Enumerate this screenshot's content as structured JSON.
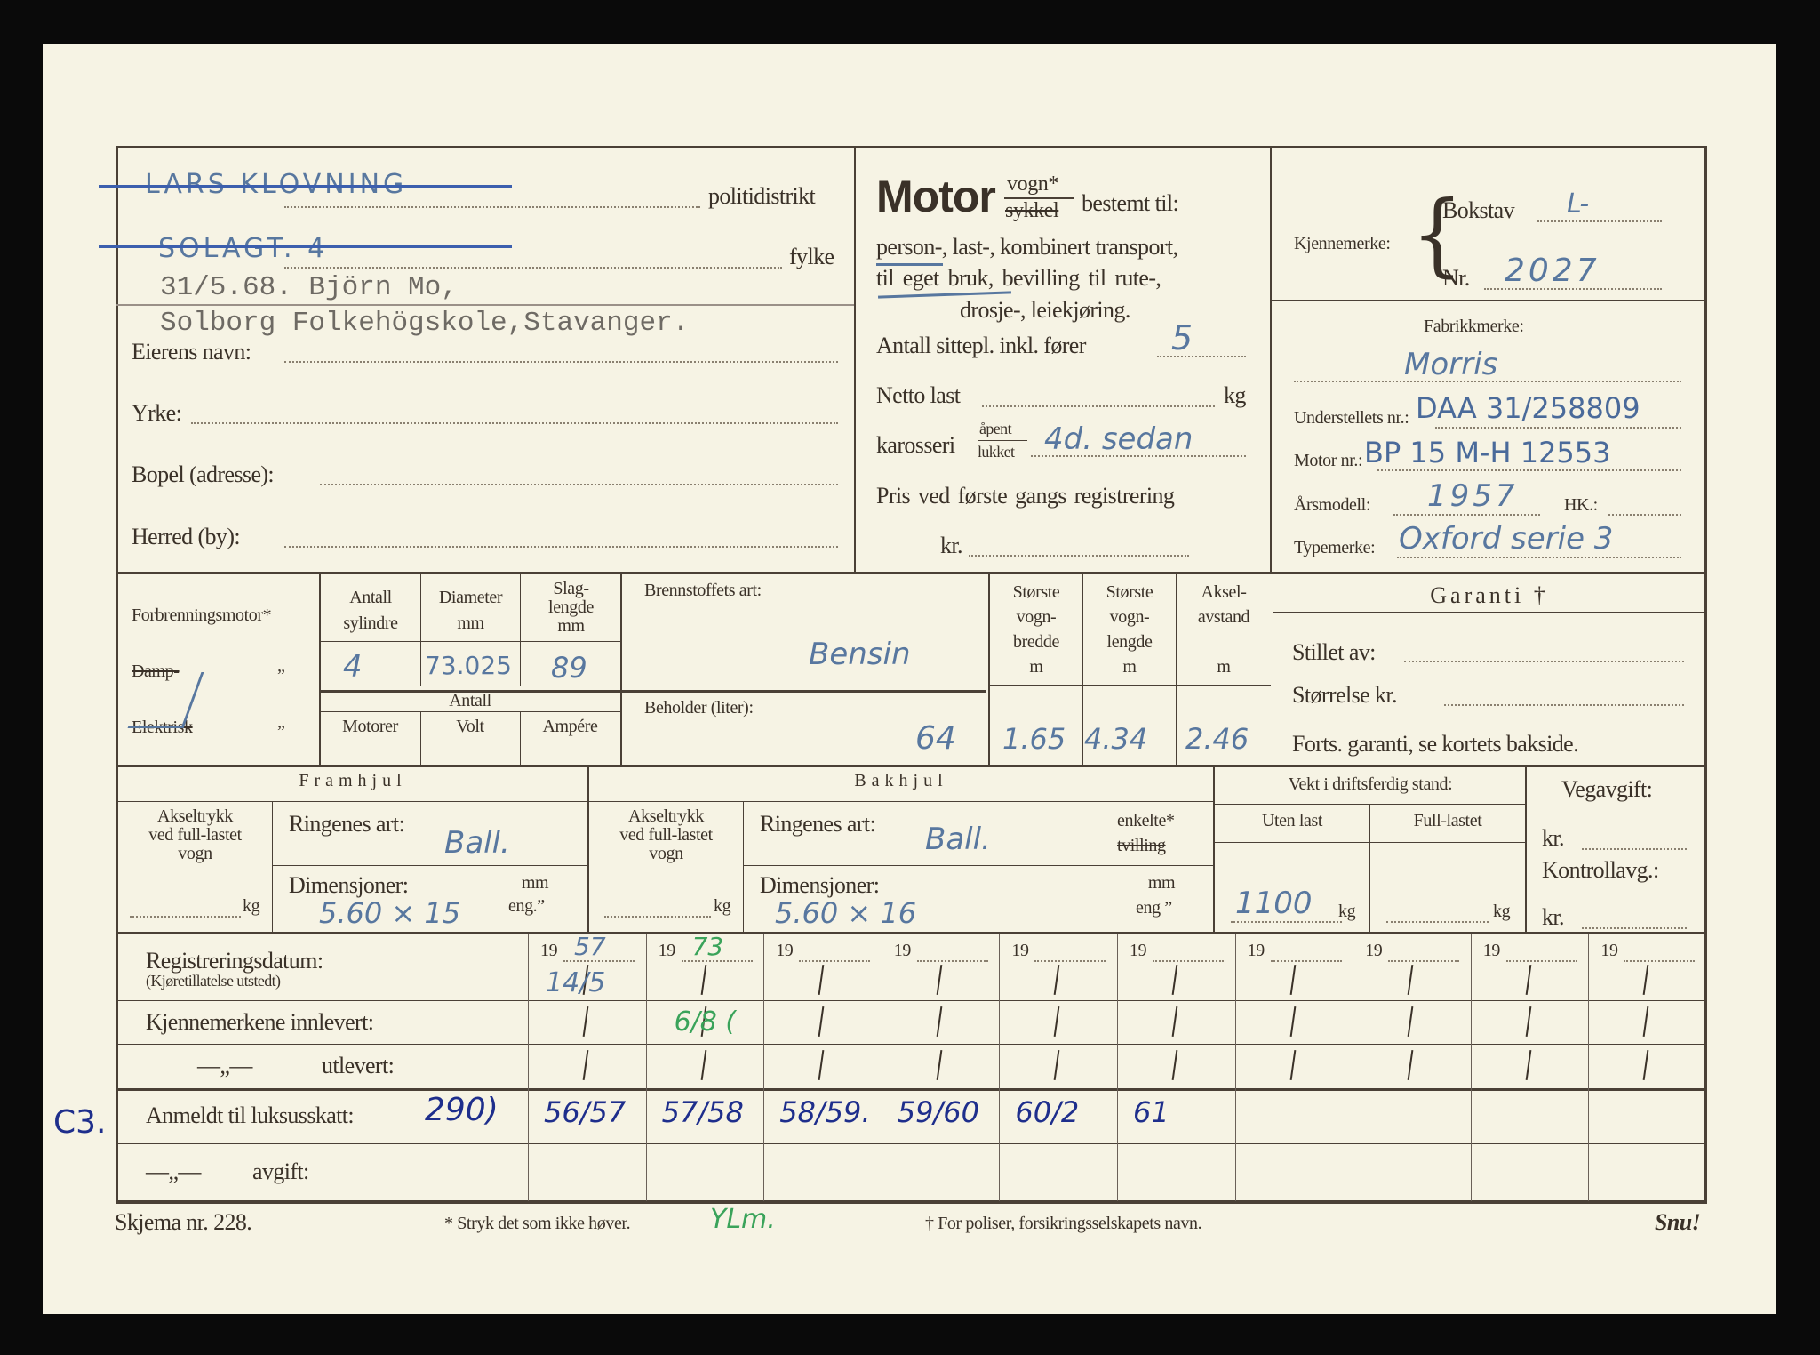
{
  "owner": {
    "struck_name": "LARS KLOVNING",
    "police_district_label": "politidistrikt",
    "struck_street": "SOLAGT. 4",
    "county_label": "fylke",
    "typed_line1": "31/5.68. Björn Mo,",
    "typed_line2": "Solborg Folkehögskole,Stavanger.",
    "name_label": "Eierens navn:",
    "occupation_label": "Yrke:",
    "address_label": "Bopel (adresse):",
    "municipality_label": "Herred (by):"
  },
  "vehicle": {
    "motor_label": "Motor",
    "vogn": "vogn*",
    "sykkel": "sykkel",
    "purpose_label": "bestemt til:",
    "purpose_line1": "person-, last-, kombinert transport,",
    "purpose_line2": "til eget bruk, bevilling til rute-,",
    "purpose_line3": "drosje-, leiekjøring.",
    "seats_label": "Antall sittepl. inkl. fører",
    "seats_value": "5",
    "net_load_label": "Netto last",
    "net_load_unit": "kg",
    "body_label": "karosseri",
    "body_open": "åpent",
    "body_closed": "lukket",
    "body_value": "4d. sedan",
    "price_label": "Pris ved første gangs registrering",
    "price_currency": "kr."
  },
  "registration": {
    "plate_label": "Kjennemerke:",
    "letter_label": "Bokstav",
    "letter_value": "L-",
    "number_label": "Nr.",
    "number_value": "2027",
    "make_label": "Fabrikkmerke:",
    "make_value": "Morris",
    "chassis_label": "Understellets nr.:",
    "chassis_value": "DAA 31/258809",
    "engine_no_label": "Motor nr.:",
    "engine_no_value": "BP 15 M-H 12553",
    "model_year_label": "Årsmodell:",
    "model_year_value": "1957",
    "hp_label": "HK.:",
    "type_label": "Typemerke:",
    "type_value": "Oxford serie 3"
  },
  "engine": {
    "combustion_label": "Forbrenningsmotor*",
    "steam_label": "Damp-",
    "electric_label": "Elektrisk",
    "ditto": "„",
    "cylinders_label": "Antall sylindre",
    "cylinders_value": "4",
    "diameter_label": "Diameter mm",
    "diameter_value": "73.025",
    "stroke_label": "Slag-lengde mm",
    "stroke_value": "89",
    "count_label": "Antall",
    "motors_label": "Motorer",
    "volt_label": "Volt",
    "ampere_label": "Ampére",
    "fuel_label": "Brennstoffets art:",
    "fuel_value": "Bensin",
    "tank_label": "Beholder (liter):",
    "tank_value": "64",
    "width_label": [
      "Største",
      "vogn-",
      "bredde",
      "m"
    ],
    "width_value": "1.65",
    "length_label": [
      "Største",
      "vogn-",
      "lengde",
      "m"
    ],
    "length_value": "4.34",
    "wheelbase_label": [
      "Aksel-",
      "avstand",
      "m"
    ],
    "wheelbase_value": "2.46"
  },
  "guarantee": {
    "title": "Garanti †",
    "issued_by_label": "Stillet av:",
    "amount_label": "Størrelse kr.",
    "note": "Forts. garanti, se kortets bakside."
  },
  "wheels": {
    "front_title": "Framhjul",
    "rear_title": "Bakhjul",
    "axle_load_label": [
      "Akseltrykk",
      "ved full-lastet",
      "vogn"
    ],
    "kg": "kg",
    "rings_label": "Ringenes art:",
    "front_rings_value": "Ball.",
    "rear_rings_value": "Ball.",
    "single": "enkelte*",
    "twin": "tvilling",
    "dimensions_label": "Dimensjoner:",
    "mm": "mm",
    "eng_front": "eng.”",
    "eng_rear": "eng ”",
    "front_dimensions_value": "5.60 × 15",
    "rear_dimensions_value": "5.60 × 16"
  },
  "weight": {
    "title": "Vekt i driftsferdig stand:",
    "unladen_label": "Uten last",
    "laden_label": "Full-lastet",
    "unladen_value": "1100",
    "kg": "kg"
  },
  "road_tax": {
    "title": "Vegavgift:",
    "kr1": "kr.",
    "control_label": "Kontrollavg.:",
    "kr2": "kr."
  },
  "history": {
    "reg_date_label": "Registreringsdatum:",
    "reg_date_sub": "(Kjøretillatelse utstedt)",
    "plates_in_label": "Kjennemerkene innlevert:",
    "plates_out_prefix": "—„—",
    "plates_out_label": "utlevert:",
    "luxury_label": "Anmeldt til luksusskatt:",
    "luxury_extra": "290)",
    "fee_prefix": "—„—",
    "fee_label": "avgift:",
    "margin_note": "C3.",
    "year_prefix": "19",
    "columns": [
      {
        "year": "57",
        "reg": "14/5",
        "in": "",
        "lux": "56/57"
      },
      {
        "year": "73",
        "reg": "",
        "in": "6/8 (",
        "lux": "57/58"
      },
      {
        "year": "",
        "reg": "",
        "in": "",
        "lux": "58/59."
      },
      {
        "year": "",
        "reg": "",
        "in": "",
        "lux": "59/60"
      },
      {
        "year": "",
        "reg": "",
        "in": "",
        "lux": "60/2"
      },
      {
        "year": "",
        "reg": "",
        "in": "",
        "lux": "61"
      },
      {
        "year": "",
        "reg": "",
        "in": "",
        "lux": ""
      },
      {
        "year": "",
        "reg": "",
        "in": "",
        "lux": ""
      },
      {
        "year": "",
        "reg": "",
        "in": "",
        "lux": ""
      },
      {
        "year": "",
        "reg": "",
        "in": "",
        "lux": ""
      }
    ]
  },
  "footer": {
    "form_number": "Skjema nr. 228.",
    "strike_note": "* Stryk det som ikke høver.",
    "initials": "YLm.",
    "policy_note": "† For poliser, forsikringsselskapets navn.",
    "turn_over": "Snu!"
  },
  "colors": {
    "ink_blue": "#58779f",
    "ink_dark_blue": "#1e2e8c",
    "ink_green": "#3aa35a",
    "paper": "#f6f3e4"
  }
}
